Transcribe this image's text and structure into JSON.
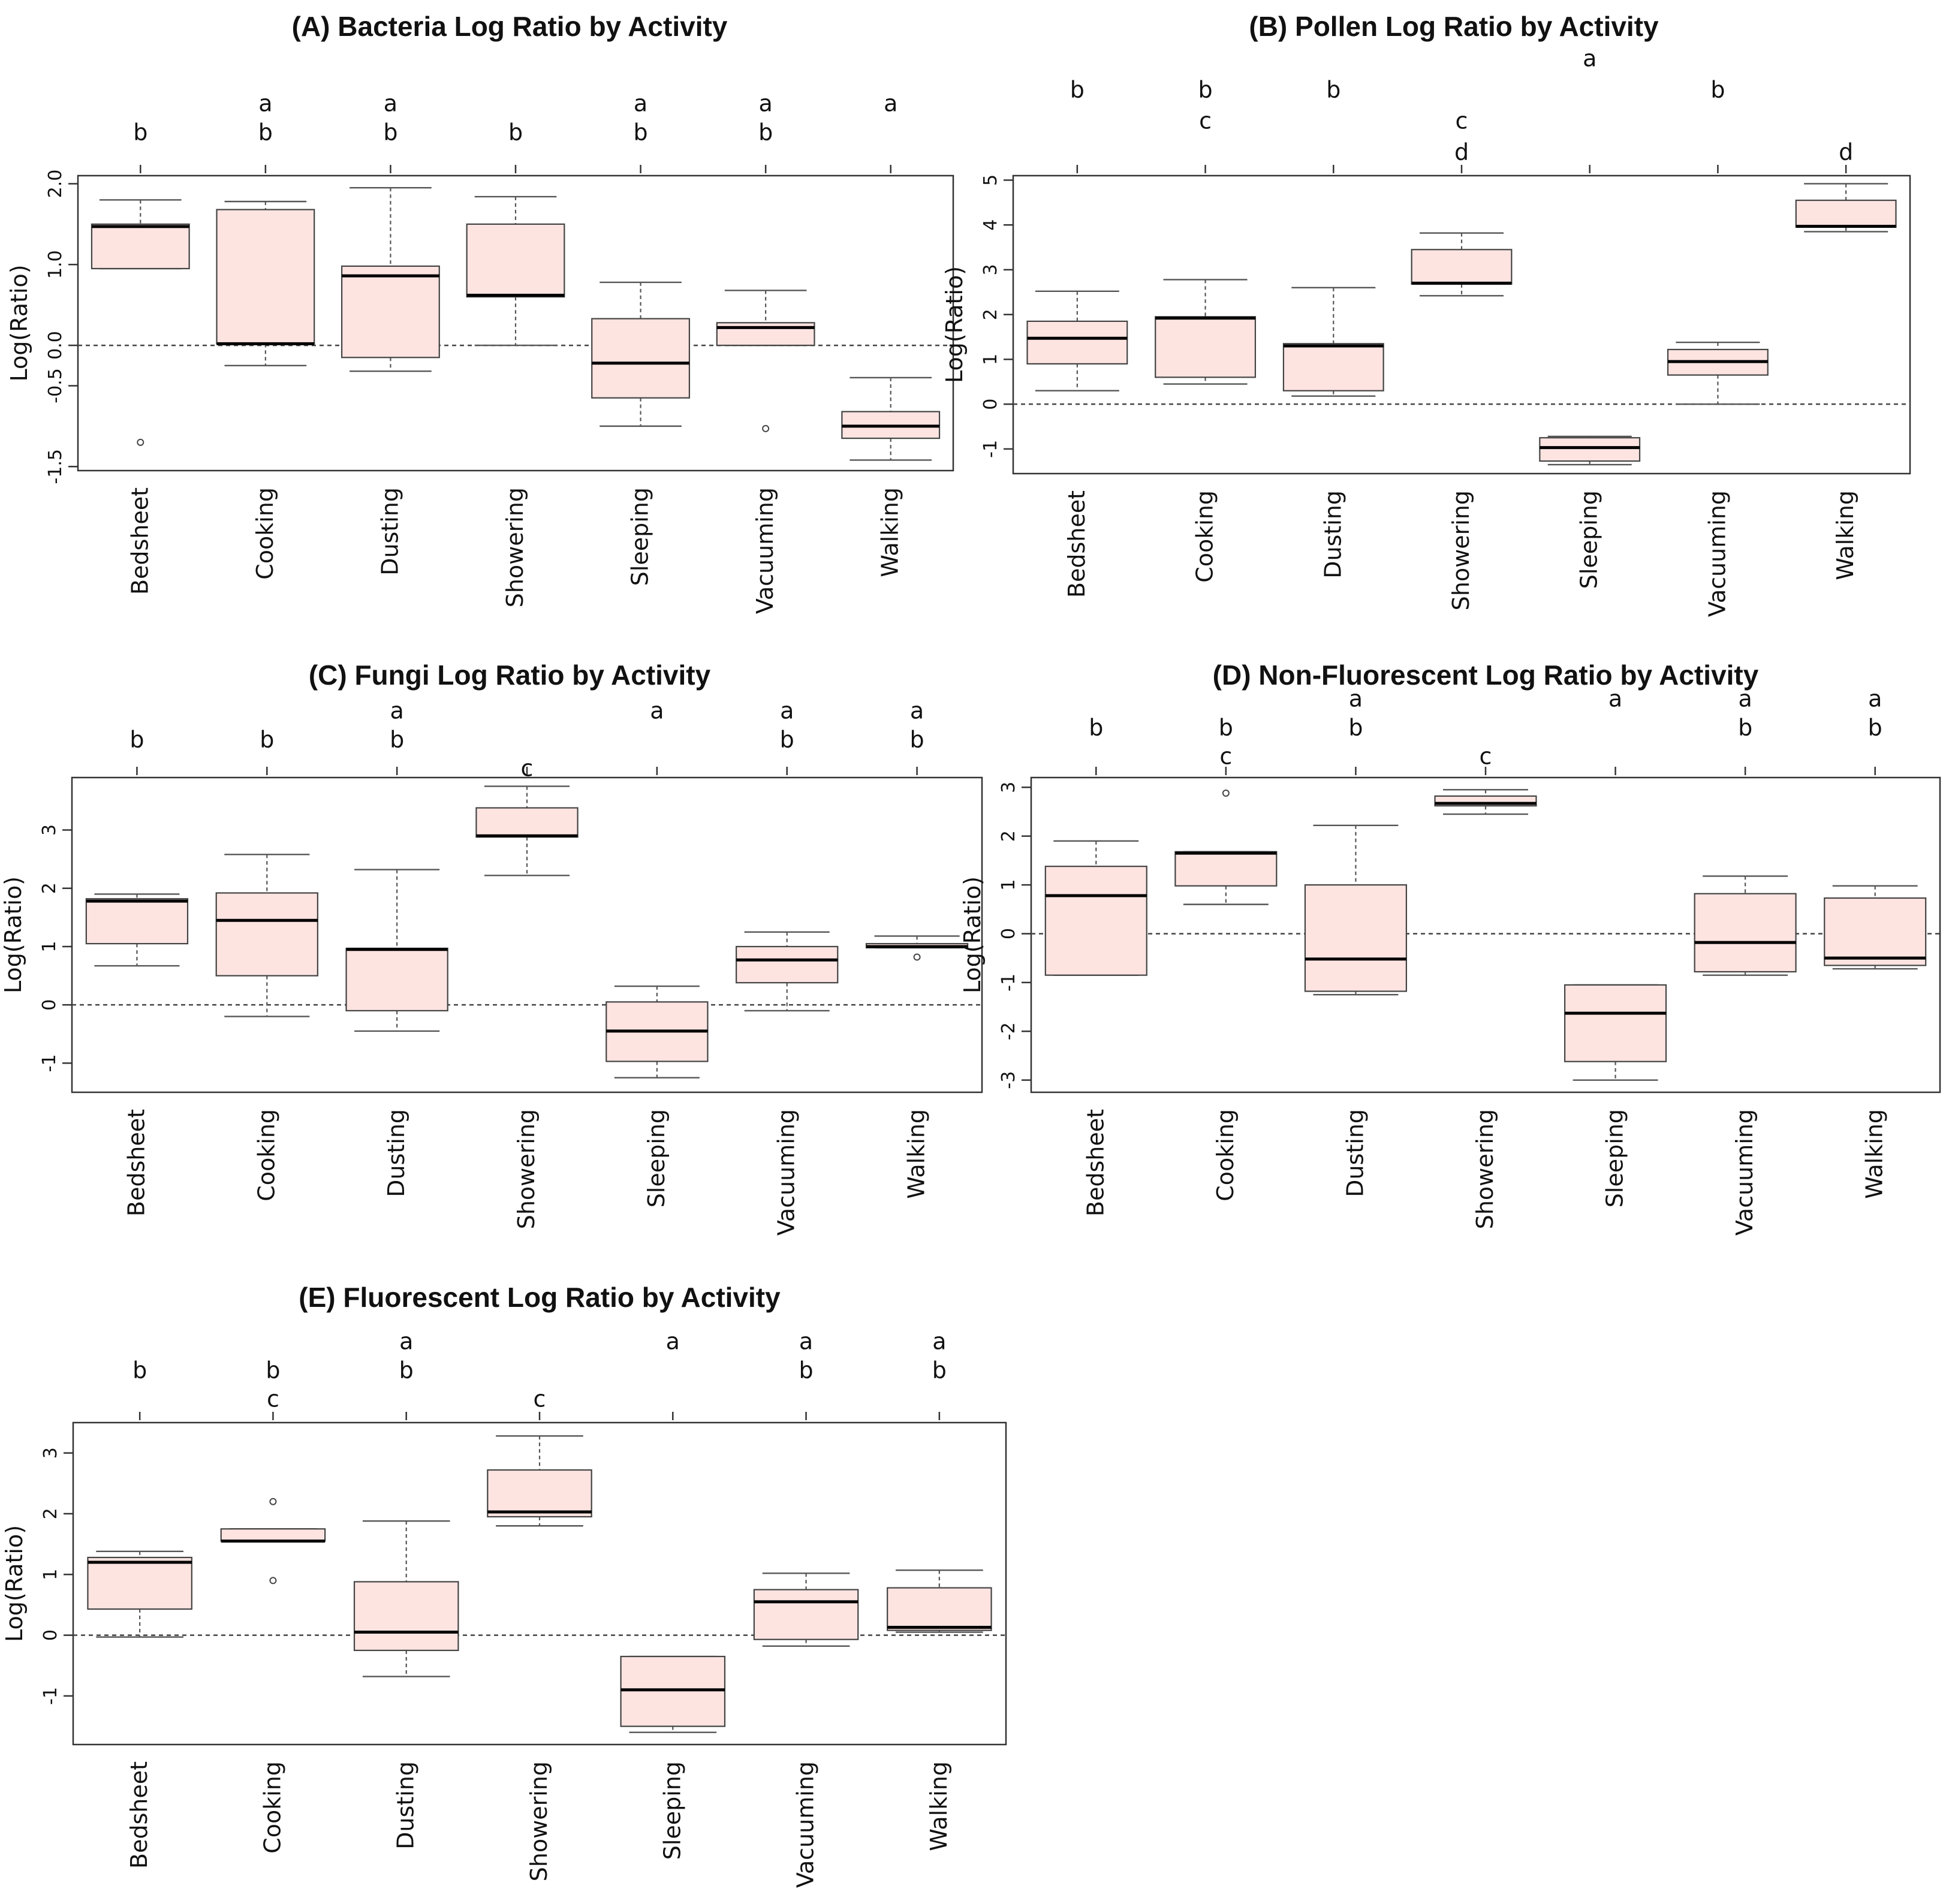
{
  "chart_data": [
    {
      "type": "box",
      "title": "(A) Bacteria Log Ratio by Activity",
      "ylabel": "Log(Ratio)",
      "categories": [
        "Bedsheet",
        "Cooking",
        "Dusting",
        "Showering",
        "Sleeping",
        "Vacuuming",
        "Walking"
      ],
      "ylim": [
        -1.55,
        2.1
      ],
      "yticks": [
        -1.5,
        -0.5,
        0.0,
        1.0,
        2.0
      ],
      "ytick_labels": [
        "-1.5",
        "-0.5",
        "0.0",
        "1.0",
        "2.0"
      ],
      "reference_line": 0,
      "boxes": [
        {
          "min": 0.95,
          "q1": 0.95,
          "median": 1.47,
          "q3": 1.5,
          "max": 1.8,
          "outliers": [
            -1.2
          ]
        },
        {
          "min": -0.25,
          "q1": 0.02,
          "median": 0.02,
          "q3": 1.68,
          "max": 1.78,
          "outliers": []
        },
        {
          "min": -0.32,
          "q1": -0.15,
          "median": 0.86,
          "q3": 0.98,
          "max": 1.95,
          "outliers": []
        },
        {
          "min": 0.0,
          "q1": 0.6,
          "median": 0.62,
          "q3": 1.5,
          "max": 1.84,
          "outliers": []
        },
        {
          "min": -1.0,
          "q1": -0.65,
          "median": -0.22,
          "q3": 0.33,
          "max": 0.78,
          "outliers": []
        },
        {
          "min": 0.0,
          "q1": 0.0,
          "median": 0.22,
          "q3": 0.28,
          "max": 0.68,
          "outliers": [
            -1.03
          ]
        },
        {
          "min": -1.42,
          "q1": -1.15,
          "median": -1.0,
          "q3": -0.82,
          "max": -0.4,
          "outliers": []
        }
      ],
      "group_letters": [
        [
          "b"
        ],
        [
          "a",
          "b"
        ],
        [
          "a",
          "b"
        ],
        [
          "b"
        ],
        [
          "a",
          "b"
        ],
        [
          "a",
          "b"
        ],
        [
          "a"
        ]
      ]
    },
    {
      "type": "box",
      "title": "(B) Pollen Log Ratio by Activity",
      "ylabel": "Log(Ratio)",
      "categories": [
        "Bedsheet",
        "Cooking",
        "Dusting",
        "Showering",
        "Sleeping",
        "Vacuuming",
        "Walking"
      ],
      "ylim": [
        -1.55,
        5.1
      ],
      "yticks": [
        -1,
        0,
        1,
        2,
        3,
        4,
        5
      ],
      "ytick_labels": [
        "-1",
        "0",
        "1",
        "2",
        "3",
        "4",
        "5"
      ],
      "reference_line": 0,
      "boxes": [
        {
          "min": 0.3,
          "q1": 0.9,
          "median": 1.47,
          "q3": 1.85,
          "max": 2.52,
          "outliers": []
        },
        {
          "min": 0.45,
          "q1": 0.6,
          "median": 1.92,
          "q3": 1.95,
          "max": 2.78,
          "outliers": []
        },
        {
          "min": 0.18,
          "q1": 0.3,
          "median": 1.3,
          "q3": 1.35,
          "max": 2.6,
          "outliers": []
        },
        {
          "min": 2.42,
          "q1": 2.68,
          "median": 2.7,
          "q3": 3.45,
          "max": 3.82,
          "outliers": []
        },
        {
          "min": -1.35,
          "q1": -1.27,
          "median": -0.97,
          "q3": -0.75,
          "max": -0.72,
          "outliers": []
        },
        {
          "min": 0.0,
          "q1": 0.65,
          "median": 0.95,
          "q3": 1.22,
          "max": 1.38,
          "outliers": []
        },
        {
          "min": 3.85,
          "q1": 3.95,
          "median": 3.97,
          "q3": 4.55,
          "max": 4.92,
          "outliers": []
        }
      ],
      "group_letters": [
        [
          "b"
        ],
        [
          "b",
          "c"
        ],
        [
          "b"
        ],
        [
          "c",
          "d"
        ],
        [
          "a"
        ],
        [
          "b"
        ],
        [
          "d"
        ]
      ]
    },
    {
      "type": "box",
      "title": "(C) Fungi Log Ratio by Activity",
      "ylabel": "Log(Ratio)",
      "categories": [
        "Bedsheet",
        "Cooking",
        "Dusting",
        "Showering",
        "Sleeping",
        "Vacuuming",
        "Walking"
      ],
      "ylim": [
        -1.5,
        3.9
      ],
      "yticks": [
        -1,
        0,
        1,
        2,
        3
      ],
      "ytick_labels": [
        "-1",
        "0",
        "1",
        "2",
        "3"
      ],
      "reference_line": 0,
      "boxes": [
        {
          "min": 0.67,
          "q1": 1.05,
          "median": 1.78,
          "q3": 1.82,
          "max": 1.9,
          "outliers": []
        },
        {
          "min": -0.2,
          "q1": 0.5,
          "median": 1.45,
          "q3": 1.92,
          "max": 2.58,
          "outliers": []
        },
        {
          "min": -0.45,
          "q1": -0.1,
          "median": 0.95,
          "q3": 0.97,
          "max": 2.32,
          "outliers": []
        },
        {
          "min": 2.22,
          "q1": 2.88,
          "median": 2.9,
          "q3": 3.38,
          "max": 3.75,
          "outliers": []
        },
        {
          "min": -1.25,
          "q1": -0.97,
          "median": -0.45,
          "q3": 0.05,
          "max": 0.32,
          "outliers": []
        },
        {
          "min": -0.1,
          "q1": 0.38,
          "median": 0.77,
          "q3": 1.0,
          "max": 1.25,
          "outliers": []
        },
        {
          "min": 0.98,
          "q1": 0.98,
          "median": 1.0,
          "q3": 1.05,
          "max": 1.18,
          "outliers": [
            0.82
          ]
        }
      ],
      "group_letters": [
        [
          "b"
        ],
        [
          "b"
        ],
        [
          "a",
          "b"
        ],
        [
          "c"
        ],
        [
          "a"
        ],
        [
          "a",
          "b"
        ],
        [
          "a",
          "b"
        ]
      ]
    },
    {
      "type": "box",
      "title": "(D) Non-Fluorescent Log Ratio by Activity",
      "ylabel": "Log(Ratio)",
      "categories": [
        "Bedsheet",
        "Cooking",
        "Dusting",
        "Showering",
        "Sleeping",
        "Vacuuming",
        "Walking"
      ],
      "ylim": [
        -3.25,
        3.2
      ],
      "yticks": [
        -3,
        -2,
        -1,
        0,
        1,
        2,
        3
      ],
      "ytick_labels": [
        "-3",
        "-2",
        "-1",
        "0",
        "1",
        "2",
        "3"
      ],
      "reference_line": 0,
      "boxes": [
        {
          "min": -0.85,
          "q1": -0.85,
          "median": 0.78,
          "q3": 1.38,
          "max": 1.9,
          "outliers": []
        },
        {
          "min": 0.6,
          "q1": 0.98,
          "median": 1.65,
          "q3": 1.68,
          "max": 1.68,
          "outliers": [
            2.88
          ]
        },
        {
          "min": -1.25,
          "q1": -1.18,
          "median": -0.52,
          "q3": 1.0,
          "max": 2.22,
          "outliers": []
        },
        {
          "min": 2.45,
          "q1": 2.62,
          "median": 2.67,
          "q3": 2.82,
          "max": 2.95,
          "outliers": []
        },
        {
          "min": -3.0,
          "q1": -2.62,
          "median": -1.63,
          "q3": -1.05,
          "max": -1.05,
          "outliers": []
        },
        {
          "min": -0.85,
          "q1": -0.78,
          "median": -0.18,
          "q3": 0.82,
          "max": 1.18,
          "outliers": []
        },
        {
          "min": -0.72,
          "q1": -0.65,
          "median": -0.5,
          "q3": 0.73,
          "max": 0.98,
          "outliers": []
        }
      ],
      "group_letters": [
        [
          "b"
        ],
        [
          "b",
          "c"
        ],
        [
          "a",
          "b"
        ],
        [
          "c"
        ],
        [
          "a"
        ],
        [
          "a",
          "b"
        ],
        [
          "a",
          "b"
        ]
      ]
    },
    {
      "type": "box",
      "title": "(E) Fluorescent Log Ratio by Activity",
      "ylabel": "Log(Ratio)",
      "categories": [
        "Bedsheet",
        "Cooking",
        "Dusting",
        "Showering",
        "Sleeping",
        "Vacuuming",
        "Walking"
      ],
      "ylim": [
        -1.8,
        3.5
      ],
      "yticks": [
        -1,
        0,
        1,
        2,
        3
      ],
      "ytick_labels": [
        "-1",
        "0",
        "1",
        "2",
        "3"
      ],
      "reference_line": 0,
      "boxes": [
        {
          "min": -0.03,
          "q1": 0.43,
          "median": 1.2,
          "q3": 1.28,
          "max": 1.38,
          "outliers": []
        },
        {
          "min": 1.55,
          "q1": 1.55,
          "median": 1.55,
          "q3": 1.75,
          "max": 1.75,
          "outliers": [
            2.2,
            0.9
          ]
        },
        {
          "min": -0.68,
          "q1": -0.25,
          "median": 0.05,
          "q3": 0.88,
          "max": 1.88,
          "outliers": []
        },
        {
          "min": 1.8,
          "q1": 1.95,
          "median": 2.03,
          "q3": 2.72,
          "max": 3.28,
          "outliers": []
        },
        {
          "min": -1.6,
          "q1": -1.5,
          "median": -0.9,
          "q3": -0.35,
          "max": -0.35,
          "outliers": []
        },
        {
          "min": -0.18,
          "q1": -0.07,
          "median": 0.55,
          "q3": 0.75,
          "max": 1.02,
          "outliers": []
        },
        {
          "min": 0.05,
          "q1": 0.08,
          "median": 0.13,
          "q3": 0.78,
          "max": 1.07,
          "outliers": []
        }
      ],
      "group_letters": [
        [
          "b"
        ],
        [
          "b",
          "c"
        ],
        [
          "a",
          "b"
        ],
        [
          "c"
        ],
        [
          "a"
        ],
        [
          "a",
          "b"
        ],
        [
          "a",
          "b"
        ]
      ]
    }
  ],
  "colors": {
    "box_fill": "#fde4e1",
    "box_stroke": "#444444",
    "frame": "#333333",
    "median": "#000000",
    "whisker": "#555555",
    "refline": "#444444"
  }
}
